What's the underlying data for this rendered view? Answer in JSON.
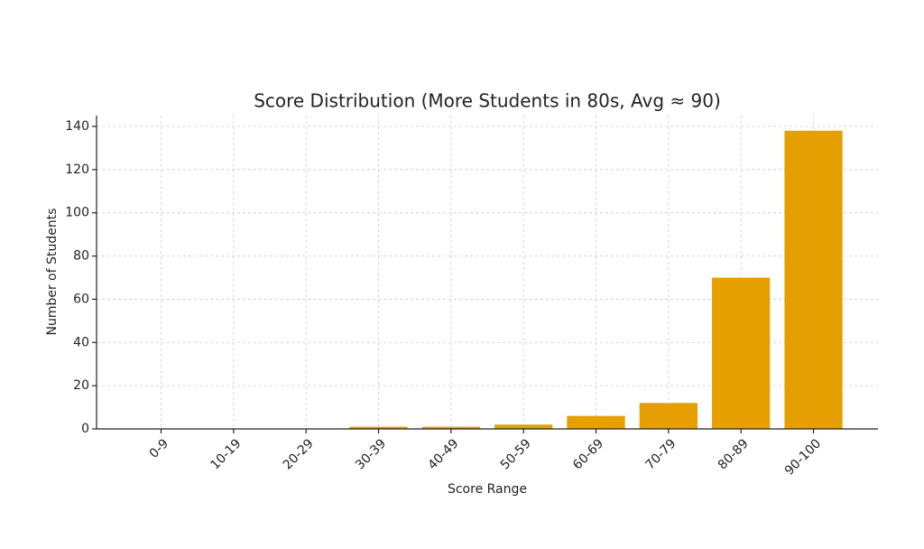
{
  "chart_data": {
    "type": "bar",
    "title": "Score Distribution (More Students in 80s, Avg ≈ 90)",
    "x_label": "Score Range",
    "y_label": "Number of Students",
    "categories": [
      "0-9",
      "10-19",
      "20-29",
      "30-39",
      "40-49",
      "50-59",
      "60-69",
      "70-79",
      "80-89",
      "90-100"
    ],
    "values": [
      0,
      0,
      0,
      1,
      1,
      2,
      6,
      12,
      70,
      138
    ],
    "color": "#e5a000",
    "ylim": [
      0,
      145
    ],
    "yticks": [
      0,
      20,
      40,
      60,
      80,
      100,
      120,
      140
    ],
    "grid": true
  }
}
